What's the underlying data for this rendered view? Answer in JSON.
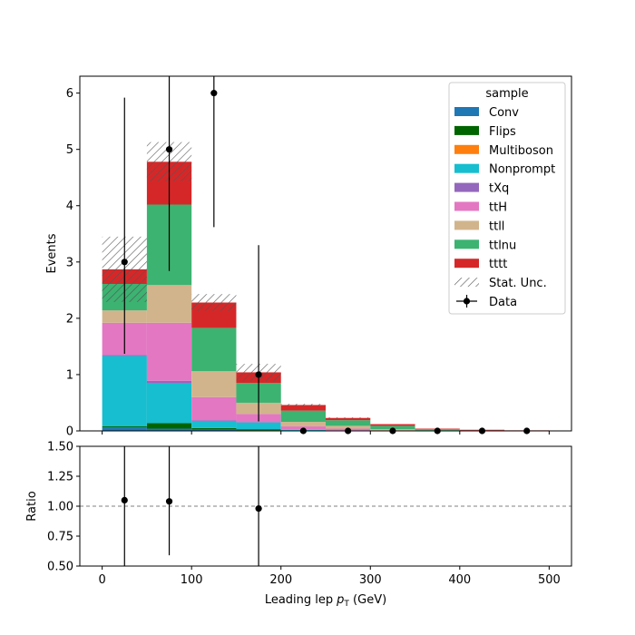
{
  "chart_data": [
    {
      "type": "bar",
      "stacked": true,
      "bin_edges": [
        0,
        50,
        100,
        150,
        200,
        250,
        300,
        350,
        400,
        450,
        500
      ],
      "xlim": [
        -25,
        525
      ],
      "ylim": [
        0,
        6.3
      ],
      "xlabel": "",
      "ylabel": "Events",
      "yticks": [
        0,
        1,
        2,
        3,
        4,
        5,
        6
      ],
      "xticks": [
        0,
        100,
        200,
        300,
        400,
        500
      ],
      "grid": false,
      "legend": {
        "title": "sample",
        "placement": "top-right",
        "stat_unc_label": "Stat. Unc.",
        "data_label": "Data"
      },
      "series": [
        {
          "name": "Conv",
          "color": "#1f77b4",
          "values": [
            0.06,
            0.04,
            0.02,
            0.01,
            0.0,
            0.0,
            0.0,
            0.0,
            0.0,
            0.0
          ]
        },
        {
          "name": "Flips",
          "color": "#006400",
          "values": [
            0.02,
            0.1,
            0.03,
            0.02,
            0.0,
            0.0,
            0.0,
            0.0,
            0.0,
            0.0
          ]
        },
        {
          "name": "Multiboson",
          "color": "#ff7f0e",
          "values": [
            0.0,
            0.0,
            0.0,
            0.0,
            0.0,
            0.0,
            0.0,
            0.0,
            0.0,
            0.0
          ]
        },
        {
          "name": "Nonprompt",
          "color": "#17becf",
          "values": [
            1.25,
            0.7,
            0.12,
            0.12,
            0.02,
            0.01,
            0.0,
            0.0,
            0.0,
            0.0
          ]
        },
        {
          "name": "tXq",
          "color": "#9467bd",
          "values": [
            0.02,
            0.05,
            0.02,
            0.01,
            0.0,
            0.0,
            0.0,
            0.0,
            0.0,
            0.0
          ]
        },
        {
          "name": "ttH",
          "color": "#e377c2",
          "values": [
            0.57,
            1.03,
            0.41,
            0.14,
            0.06,
            0.03,
            0.01,
            0.0,
            0.0,
            0.0
          ]
        },
        {
          "name": "ttll",
          "color": "#d2b48c",
          "values": [
            0.22,
            0.67,
            0.46,
            0.2,
            0.08,
            0.05,
            0.02,
            0.01,
            0.0,
            0.0
          ]
        },
        {
          "name": "ttlnu",
          "color": "#3cb371",
          "values": [
            0.47,
            1.43,
            0.77,
            0.35,
            0.2,
            0.1,
            0.06,
            0.02,
            0.01,
            0.0
          ]
        },
        {
          "name": "tttt",
          "color": "#d62728",
          "values": [
            0.26,
            0.76,
            0.45,
            0.19,
            0.1,
            0.04,
            0.03,
            0.01,
            0.01,
            0.01
          ]
        }
      ],
      "stat_unc": [
        0.58,
        0.35,
        0.15,
        0.15,
        0.02,
        0.01,
        0.0,
        0.0,
        0.0,
        0.0
      ],
      "data": {
        "x": [
          25,
          75,
          125,
          175,
          225,
          275,
          325,
          375,
          425,
          475
        ],
        "y": [
          3,
          5,
          6,
          1,
          0,
          0,
          0,
          0,
          0,
          0
        ],
        "yerr_low": [
          1.63,
          2.16,
          2.38,
          0.83,
          0,
          0,
          0,
          0,
          0,
          0
        ],
        "yerr_high": [
          2.92,
          3.38,
          3.58,
          2.3,
          0,
          0,
          0,
          0,
          0,
          0
        ]
      }
    },
    {
      "type": "scatter",
      "xlabel": "Leading lep",
      "xlabel_sym": "p",
      "xlabel_sub": "T",
      "xlabel_unit": " (GeV)",
      "ylabel": "Ratio",
      "xlim": [
        -25,
        525
      ],
      "ylim": [
        0.5,
        1.5
      ],
      "yticks": [
        "0.50",
        "0.75",
        "1.00",
        "1.25",
        "1.50"
      ],
      "xticks": [
        "0",
        "100",
        "200",
        "300",
        "400",
        "500"
      ],
      "reference_line": 1.0,
      "points": {
        "x": [
          25,
          75,
          175
        ],
        "y": [
          1.05,
          1.04,
          0.98
        ],
        "yerr_low": [
          0.6,
          0.45,
          0.8
        ],
        "yerr_high": [
          1.0,
          1.0,
          2.5
        ]
      }
    }
  ]
}
